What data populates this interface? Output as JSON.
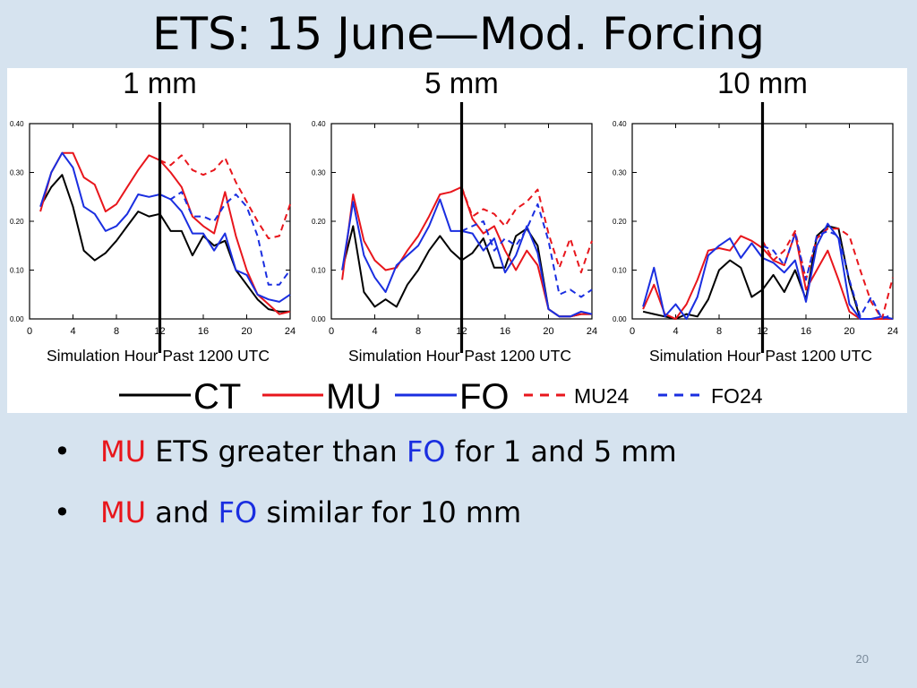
{
  "slide": {
    "title": "ETS:  15 June—Mod. Forcing",
    "page_number": "20",
    "bullets": [
      {
        "parts": [
          {
            "text": "MU",
            "color": "red"
          },
          {
            "text": " ETS greater than ",
            "color": "black"
          },
          {
            "text": "FO",
            "color": "blue"
          },
          {
            "text": " for 1 and 5 mm",
            "color": "black"
          }
        ]
      },
      {
        "parts": [
          {
            "text": "MU",
            "color": "red"
          },
          {
            "text": " and ",
            "color": "black"
          },
          {
            "text": "FO",
            "color": "blue"
          },
          {
            "text": " similar for 10 mm",
            "color": "black"
          }
        ]
      }
    ]
  },
  "colors": {
    "CT": "#000000",
    "MU": "#e8161c",
    "FO": "#1a2ee0",
    "background": "#d6e3ef"
  },
  "legend": [
    {
      "label": "CT",
      "color": "#000000",
      "dash": false
    },
    {
      "label": "MU",
      "color": "#e8161c",
      "dash": false
    },
    {
      "label": "FO",
      "color": "#1a2ee0",
      "dash": false
    },
    {
      "label": "MU24",
      "color": "#e8161c",
      "dash": true
    },
    {
      "label": "FO24",
      "color": "#1a2ee0",
      "dash": true
    }
  ],
  "chart_data": [
    {
      "type": "line",
      "title": "1 mm",
      "xlabel": "Simulation Hour Past 1200 UTC",
      "ylabel": "",
      "xlim": [
        0,
        24
      ],
      "ylim": [
        0,
        0.4
      ],
      "xticks": [
        0,
        4,
        8,
        12,
        16,
        20,
        24
      ],
      "yticks": [
        "0.00",
        "0.10",
        "0.20",
        "0.30",
        "0.40"
      ],
      "vline_x": 12,
      "series": [
        {
          "name": "CT",
          "dash": false,
          "x": [
            1,
            2,
            3,
            4,
            5,
            6,
            7,
            8,
            9,
            10,
            11,
            12,
            13,
            14,
            15,
            16,
            17,
            18,
            19,
            20,
            21,
            22,
            23,
            24
          ],
          "y": [
            0.23,
            0.27,
            0.295,
            0.23,
            0.14,
            0.12,
            0.135,
            0.16,
            0.19,
            0.22,
            0.21,
            0.215,
            0.18,
            0.18,
            0.13,
            0.17,
            0.15,
            0.16,
            0.1,
            0.07,
            0.04,
            0.02,
            0.015,
            0.015
          ]
        },
        {
          "name": "MU",
          "dash": false,
          "x": [
            1,
            2,
            3,
            4,
            5,
            6,
            7,
            8,
            9,
            10,
            11,
            12,
            13,
            14,
            15,
            16,
            17,
            18,
            19,
            20,
            21,
            22,
            23,
            24
          ],
          "y": [
            0.22,
            0.3,
            0.34,
            0.34,
            0.29,
            0.275,
            0.22,
            0.235,
            0.27,
            0.305,
            0.335,
            0.325,
            0.3,
            0.27,
            0.21,
            0.19,
            0.175,
            0.26,
            0.17,
            0.1,
            0.05,
            0.03,
            0.01,
            0.015
          ]
        },
        {
          "name": "FO",
          "dash": false,
          "x": [
            1,
            2,
            3,
            4,
            5,
            6,
            7,
            8,
            9,
            10,
            11,
            12,
            13,
            14,
            15,
            16,
            17,
            18,
            19,
            20,
            21,
            22,
            23,
            24
          ],
          "y": [
            0.23,
            0.3,
            0.34,
            0.31,
            0.23,
            0.215,
            0.18,
            0.19,
            0.215,
            0.255,
            0.25,
            0.255,
            0.245,
            0.22,
            0.175,
            0.175,
            0.14,
            0.175,
            0.1,
            0.09,
            0.05,
            0.04,
            0.035,
            0.05
          ]
        },
        {
          "name": "MU24",
          "dash": true,
          "x": [
            12,
            13,
            14,
            15,
            16,
            17,
            18,
            19,
            20,
            21,
            22,
            23,
            24
          ],
          "y": [
            0.325,
            0.315,
            0.335,
            0.305,
            0.295,
            0.305,
            0.33,
            0.28,
            0.24,
            0.2,
            0.165,
            0.17,
            0.235
          ]
        },
        {
          "name": "FO24",
          "dash": true,
          "x": [
            12,
            13,
            14,
            15,
            16,
            17,
            18,
            19,
            20,
            21,
            22,
            23,
            24
          ],
          "y": [
            0.255,
            0.245,
            0.26,
            0.21,
            0.21,
            0.2,
            0.235,
            0.255,
            0.23,
            0.17,
            0.07,
            0.07,
            0.1
          ]
        }
      ]
    },
    {
      "type": "line",
      "title": "5 mm",
      "xlabel": "Simulation Hour Past 1200 UTC",
      "ylabel": "",
      "xlim": [
        0,
        24
      ],
      "ylim": [
        0,
        0.4
      ],
      "xticks": [
        0,
        4,
        8,
        12,
        16,
        20,
        24
      ],
      "yticks": [
        "0.00",
        "0.10",
        "0.20",
        "0.30",
        "0.40"
      ],
      "vline_x": 12,
      "series": [
        {
          "name": "CT",
          "dash": false,
          "x": [
            1,
            2,
            3,
            4,
            5,
            6,
            7,
            8,
            9,
            10,
            11,
            12,
            13,
            14,
            15,
            16,
            17,
            18,
            19,
            20,
            21,
            22,
            23,
            24
          ],
          "y": [
            0.1,
            0.19,
            0.055,
            0.025,
            0.04,
            0.025,
            0.07,
            0.1,
            0.14,
            0.17,
            0.14,
            0.12,
            0.135,
            0.165,
            0.105,
            0.105,
            0.17,
            0.185,
            0.15,
            0.02,
            0.005,
            0.005,
            0.01,
            0.01
          ]
        },
        {
          "name": "MU",
          "dash": false,
          "x": [
            1,
            2,
            3,
            4,
            5,
            6,
            7,
            8,
            9,
            10,
            11,
            12,
            13,
            14,
            15,
            16,
            17,
            18,
            19,
            20,
            21,
            22,
            23,
            24
          ],
          "y": [
            0.08,
            0.255,
            0.16,
            0.12,
            0.1,
            0.105,
            0.14,
            0.17,
            0.21,
            0.255,
            0.26,
            0.27,
            0.205,
            0.175,
            0.19,
            0.14,
            0.1,
            0.14,
            0.11,
            0.02,
            0.005,
            0.005,
            0.01,
            0.01
          ]
        },
        {
          "name": "FO",
          "dash": false,
          "x": [
            1,
            2,
            3,
            4,
            5,
            6,
            7,
            8,
            9,
            10,
            11,
            12,
            13,
            14,
            15,
            16,
            17,
            18,
            19,
            20,
            21,
            22,
            23,
            24
          ],
          "y": [
            0.1,
            0.24,
            0.13,
            0.085,
            0.055,
            0.11,
            0.13,
            0.15,
            0.19,
            0.245,
            0.18,
            0.18,
            0.175,
            0.14,
            0.165,
            0.095,
            0.13,
            0.19,
            0.135,
            0.02,
            0.005,
            0.005,
            0.015,
            0.01
          ]
        },
        {
          "name": "MU24",
          "dash": true,
          "x": [
            12,
            13,
            14,
            15,
            16,
            17,
            18,
            19,
            20,
            21,
            22,
            23,
            24
          ],
          "y": [
            0.27,
            0.21,
            0.225,
            0.215,
            0.19,
            0.225,
            0.24,
            0.265,
            0.175,
            0.105,
            0.165,
            0.095,
            0.16
          ]
        },
        {
          "name": "FO24",
          "dash": true,
          "x": [
            12,
            13,
            14,
            15,
            16,
            17,
            18,
            19,
            20,
            21,
            22,
            23,
            24
          ],
          "y": [
            0.18,
            0.19,
            0.2,
            0.14,
            0.165,
            0.15,
            0.185,
            0.235,
            0.16,
            0.05,
            0.06,
            0.045,
            0.06
          ]
        }
      ]
    },
    {
      "type": "line",
      "title": "10 mm",
      "xlabel": "Simulation Hour Past 1200 UTC",
      "ylabel": "",
      "xlim": [
        0,
        24
      ],
      "ylim": [
        0,
        0.4
      ],
      "xticks": [
        0,
        4,
        8,
        12,
        16,
        20,
        24
      ],
      "yticks": [
        "0.00",
        "0.10",
        "0.20",
        "0.30",
        "0.40"
      ],
      "vline_x": 12,
      "series": [
        {
          "name": "CT",
          "dash": false,
          "x": [
            1,
            2,
            3,
            4,
            5,
            6,
            7,
            8,
            9,
            10,
            11,
            12,
            13,
            14,
            15,
            16,
            17,
            18,
            19,
            20,
            21,
            22,
            23,
            24
          ],
          "y": [
            0.015,
            0.01,
            0.005,
            0.0,
            0.01,
            0.005,
            0.04,
            0.1,
            0.12,
            0.105,
            0.045,
            0.06,
            0.09,
            0.055,
            0.1,
            0.04,
            0.17,
            0.19,
            0.185,
            0.075,
            0.0,
            0.0,
            0.0,
            0.0
          ]
        },
        {
          "name": "MU",
          "dash": false,
          "x": [
            1,
            2,
            3,
            4,
            5,
            6,
            7,
            8,
            9,
            10,
            11,
            12,
            13,
            14,
            15,
            16,
            17,
            18,
            19,
            20,
            21,
            22,
            23,
            24
          ],
          "y": [
            0.02,
            0.07,
            0.01,
            0.0,
            0.03,
            0.08,
            0.14,
            0.145,
            0.14,
            0.17,
            0.16,
            0.145,
            0.12,
            0.11,
            0.175,
            0.06,
            0.1,
            0.14,
            0.08,
            0.015,
            0.0,
            0.0,
            0.0,
            0.0
          ]
        },
        {
          "name": "FO",
          "dash": false,
          "x": [
            1,
            2,
            3,
            4,
            5,
            6,
            7,
            8,
            9,
            10,
            11,
            12,
            13,
            14,
            15,
            16,
            17,
            18,
            19,
            20,
            21,
            22,
            23,
            24
          ],
          "y": [
            0.025,
            0.105,
            0.005,
            0.03,
            0.0,
            0.045,
            0.13,
            0.15,
            0.165,
            0.125,
            0.155,
            0.125,
            0.115,
            0.095,
            0.12,
            0.035,
            0.15,
            0.195,
            0.165,
            0.03,
            0.0,
            0.0,
            0.005,
            0.0
          ]
        },
        {
          "name": "MU24",
          "dash": true,
          "x": [
            12,
            13,
            14,
            15,
            16,
            17,
            18,
            19,
            20,
            21,
            22,
            23,
            24
          ],
          "y": [
            0.16,
            0.12,
            0.14,
            0.18,
            0.08,
            0.165,
            0.185,
            0.185,
            0.17,
            0.1,
            0.035,
            0.0,
            0.085
          ]
        },
        {
          "name": "FO24",
          "dash": true,
          "x": [
            12,
            13,
            14,
            15,
            16,
            17,
            18,
            19,
            20,
            21,
            22,
            23,
            24
          ],
          "y": [
            0.15,
            0.14,
            0.11,
            0.175,
            0.08,
            0.17,
            0.18,
            0.17,
            0.08,
            0.005,
            0.045,
            0.0,
            0.01
          ]
        }
      ]
    }
  ]
}
